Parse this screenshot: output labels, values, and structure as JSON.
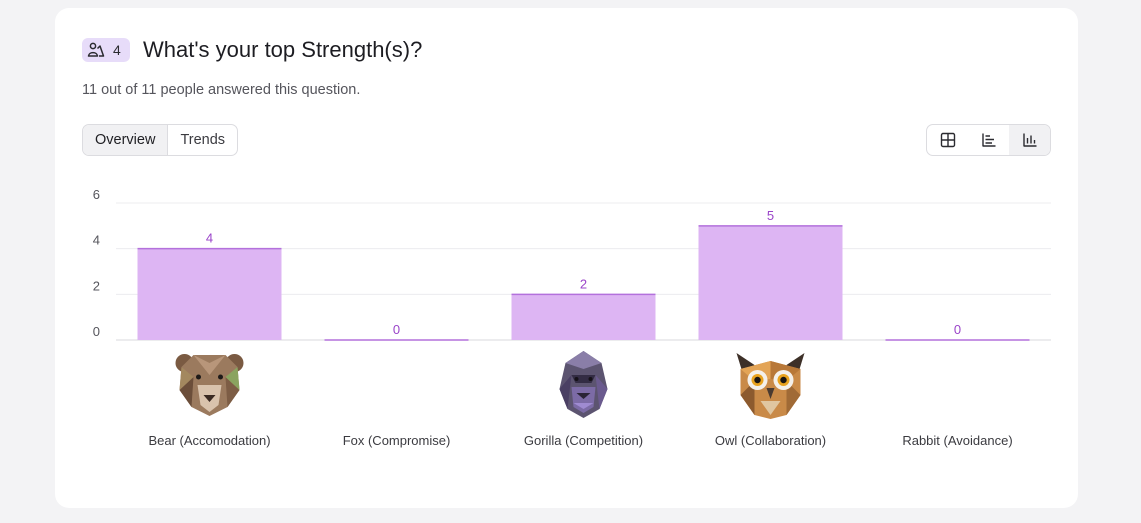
{
  "question": {
    "badge_count": "4",
    "title": "What's your top Strength(s)?",
    "subtitle": "11 out of 11 people answered this question."
  },
  "tabs": [
    {
      "label": "Overview",
      "active": true
    },
    {
      "label": "Trends",
      "active": false
    }
  ],
  "view_toggle": {
    "options": [
      "table-icon",
      "horizontal-bar-icon",
      "vertical-bar-icon"
    ],
    "active": "vertical-bar-icon"
  },
  "colors": {
    "bar_fill": "#ddb5f3",
    "bar_edge": "#b371dc",
    "data_label": "#9a44c9",
    "badge_bg": "#e7dcf9"
  },
  "chart_data": {
    "type": "bar",
    "categories": [
      "Bear (Accomodation)",
      "Fox (Compromise)",
      "Gorilla (Competition)",
      "Owl (Collaboration)",
      "Rabbit (Avoidance)"
    ],
    "values": [
      4,
      0,
      2,
      5,
      0
    ],
    "category_images": [
      "bear-image",
      "",
      "gorilla-image",
      "owl-image",
      ""
    ],
    "yticks": [
      0,
      2,
      4,
      6
    ],
    "ylim": [
      0,
      6
    ],
    "grid": true,
    "title": "",
    "xlabel": "",
    "ylabel": ""
  }
}
